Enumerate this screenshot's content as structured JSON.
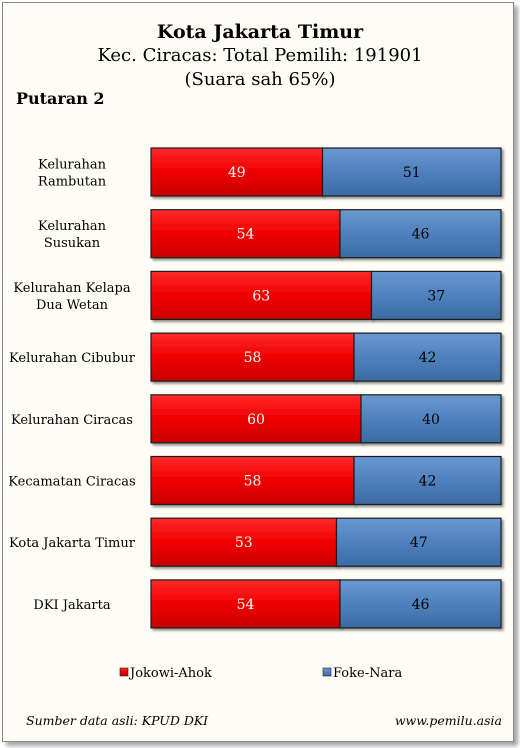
{
  "header": {
    "title": "Kota Jakarta Timur",
    "subtitle": "Kec. Ciracas: Total Pemilih: 191901",
    "note": "(Suara sah 65%)",
    "round": "Putaran 2"
  },
  "footer": {
    "source": "Sumber data asli: KPUD DKI",
    "site": "www.pemilu.asia"
  },
  "colors": {
    "jokowi": "#ff0000",
    "foke": "#4f81bd"
  },
  "chart_data": {
    "type": "bar",
    "stacked": true,
    "orientation": "horizontal",
    "categories": [
      [
        "Kelurahan",
        "Rambutan"
      ],
      [
        "Kelurahan",
        "Susukan"
      ],
      [
        "Kelurahan Kelapa",
        "Dua Wetan"
      ],
      [
        "Kelurahan Cibubur"
      ],
      [
        "Kelurahan Ciracas"
      ],
      [
        "Kecamatan Ciracas"
      ],
      [
        "Kota Jakarta Timur"
      ],
      [
        "DKI Jakarta"
      ]
    ],
    "series": [
      {
        "name": "Jokowi-Ahok",
        "values": [
          49,
          54,
          63,
          58,
          60,
          58,
          53,
          54
        ]
      },
      {
        "name": "Foke-Nara",
        "values": [
          51,
          46,
          37,
          42,
          40,
          42,
          47,
          46
        ]
      }
    ],
    "xlim": [
      0,
      100
    ],
    "legend": "bottom"
  }
}
